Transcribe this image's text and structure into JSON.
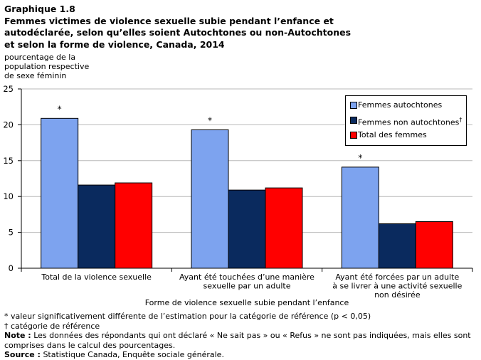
{
  "title": {
    "line1": "Graphique  1.8",
    "line2": "Femmes victimes de violence sexuelle subie pendant l’enfance et",
    "line3": "autodéclarée, selon qu’elles soient Autochtones ou non-Autochtones",
    "line4": "et selon la forme de violence, Canada, 2014"
  },
  "ylabel": {
    "line1": "pourcentage de la",
    "line2": "population respective",
    "line3": "de sexe féminin"
  },
  "colors": {
    "autochtones": "#7da3ef",
    "non_autochtones": "#0a2a5e",
    "total": "#ff0000"
  },
  "legend": {
    "item1": "Femmes autochtones",
    "item2": "Femmes non autochtones",
    "item2_sup": "†",
    "item3": "Total des femmes"
  },
  "chart_data": {
    "type": "bar",
    "xlabel": "Forme de violence sexuelle subie pendant l’enfance",
    "ylabel": "pourcentage de la population respective de sexe féminin",
    "ylim": [
      0,
      25
    ],
    "yticks": [
      0,
      5,
      10,
      15,
      20,
      25
    ],
    "grid": true,
    "legend_position": "top-right",
    "categories": [
      [
        "Total de la violence sexuelle"
      ],
      [
        "Ayant été touchées d’une manière",
        "sexuelle par un adulte"
      ],
      [
        "Ayant été forcées par un adulte",
        "à se livrer à une activité sexuelle",
        "non désirée"
      ]
    ],
    "series": [
      {
        "name": "Femmes autochtones",
        "values": [
          20.9,
          19.3,
          14.1
        ],
        "significant": [
          "*",
          "*",
          "*"
        ]
      },
      {
        "name": "Femmes non autochtones†",
        "values": [
          11.6,
          10.9,
          6.2
        ]
      },
      {
        "name": "Total des femmes",
        "values": [
          11.9,
          11.2,
          6.5
        ]
      }
    ]
  },
  "notes": {
    "sig": "* valeur significativement différente de l’estimation pour la catégorie de référence (p < 0,05)",
    "ref": "† catégorie de référence",
    "note_label": "Note :",
    "note_text": " Les données des répondants qui ont déclaré « Ne sait pas » ou « Refus » ne sont pas indiquées, mais elles sont comprises dans le calcul des pourcentages.",
    "source_label": "Source :",
    "source_text": " Statistique Canada, Enquête sociale générale."
  }
}
